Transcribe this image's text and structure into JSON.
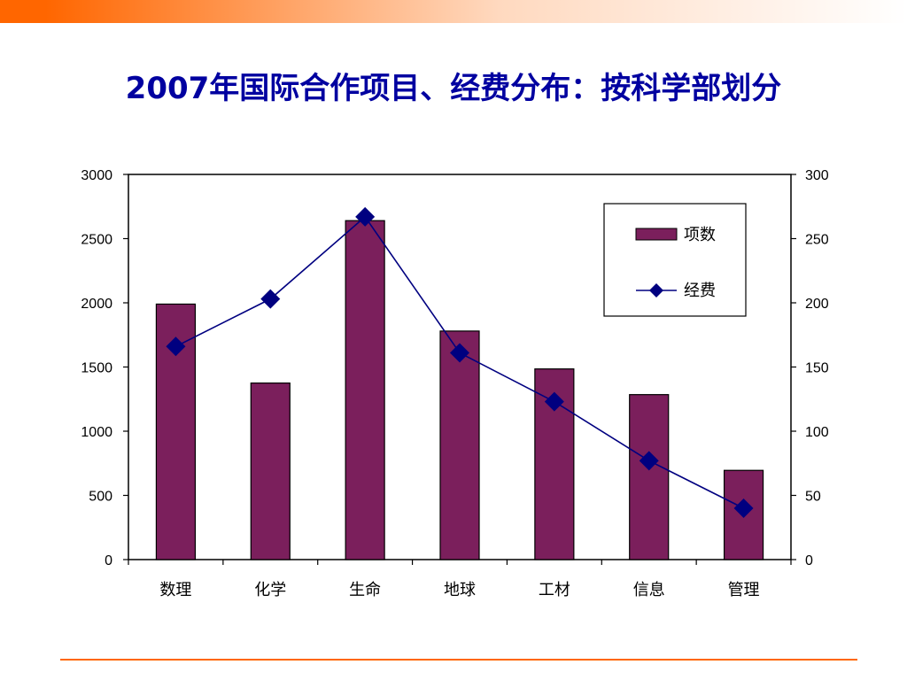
{
  "slide": {
    "title": "2007年国际合作项目、经费分布：按科学部划分",
    "accent_color": "#ff6600"
  },
  "chart_data": {
    "type": "bar+line",
    "title": "2007年国际合作项目、经费分布：按科学部划分",
    "categories": [
      "数理",
      "化学",
      "生命",
      "地球",
      "工材",
      "信息",
      "管理"
    ],
    "series": [
      {
        "name": "项数",
        "type": "bar",
        "axis": "left",
        "color": "#7b1f5c",
        "values": [
          1990,
          1375,
          2640,
          1780,
          1485,
          1285,
          695
        ]
      },
      {
        "name": "经费",
        "type": "line",
        "axis": "right",
        "color": "#000080",
        "marker": "diamond",
        "values": [
          166,
          203,
          267,
          161,
          123,
          77,
          40
        ]
      }
    ],
    "y_left": {
      "min": 0,
      "max": 3000,
      "ticks": [
        "0",
        "500",
        "1000",
        "1500",
        "2000",
        "2500",
        "3000"
      ]
    },
    "y_right": {
      "min": 0,
      "max": 300,
      "ticks": [
        "0",
        "50",
        "100",
        "150",
        "200",
        "250",
        "300"
      ]
    },
    "grid": false,
    "legend_position": "top-right"
  }
}
